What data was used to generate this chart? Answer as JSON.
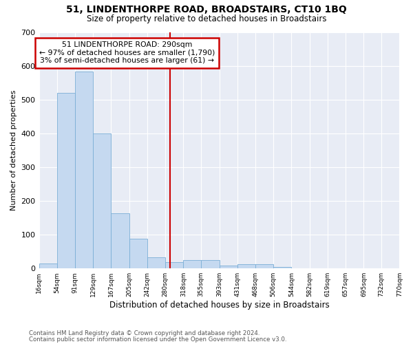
{
  "title": "51, LINDENTHORPE ROAD, BROADSTAIRS, CT10 1BQ",
  "subtitle": "Size of property relative to detached houses in Broadstairs",
  "xlabel": "Distribution of detached houses by size in Broadstairs",
  "ylabel": "Number of detached properties",
  "bar_color": "#c5d9f0",
  "bar_edge_color": "#7aaed6",
  "background_color": "#e8ecf5",
  "grid_color": "#ffffff",
  "vline_color": "#cc0000",
  "vline_x": 290,
  "bin_edges": [
    16,
    54,
    91,
    129,
    167,
    205,
    242,
    280,
    318,
    355,
    393,
    431,
    468,
    506,
    544,
    582,
    619,
    657,
    695,
    732,
    770
  ],
  "bar_heights": [
    15,
    520,
    582,
    400,
    163,
    88,
    33,
    18,
    24,
    24,
    8,
    13,
    13,
    5,
    0,
    0,
    0,
    0,
    0,
    0
  ],
  "ylim": [
    0,
    700
  ],
  "yticks": [
    0,
    100,
    200,
    300,
    400,
    500,
    600,
    700
  ],
  "annotation_text": "51 LINDENTHORPE ROAD: 290sqm\n← 97% of detached houses are smaller (1,790)\n3% of semi-detached houses are larger (61) →",
  "annotation_box_color": "#ffffff",
  "annotation_edge_color": "#cc0000",
  "footnote1": "Contains HM Land Registry data © Crown copyright and database right 2024.",
  "footnote2": "Contains public sector information licensed under the Open Government Licence v3.0.",
  "tick_labels": [
    "16sqm",
    "54sqm",
    "91sqm",
    "129sqm",
    "167sqm",
    "205sqm",
    "242sqm",
    "280sqm",
    "318sqm",
    "355sqm",
    "393sqm",
    "431sqm",
    "468sqm",
    "506sqm",
    "544sqm",
    "582sqm",
    "619sqm",
    "657sqm",
    "695sqm",
    "732sqm",
    "770sqm"
  ]
}
